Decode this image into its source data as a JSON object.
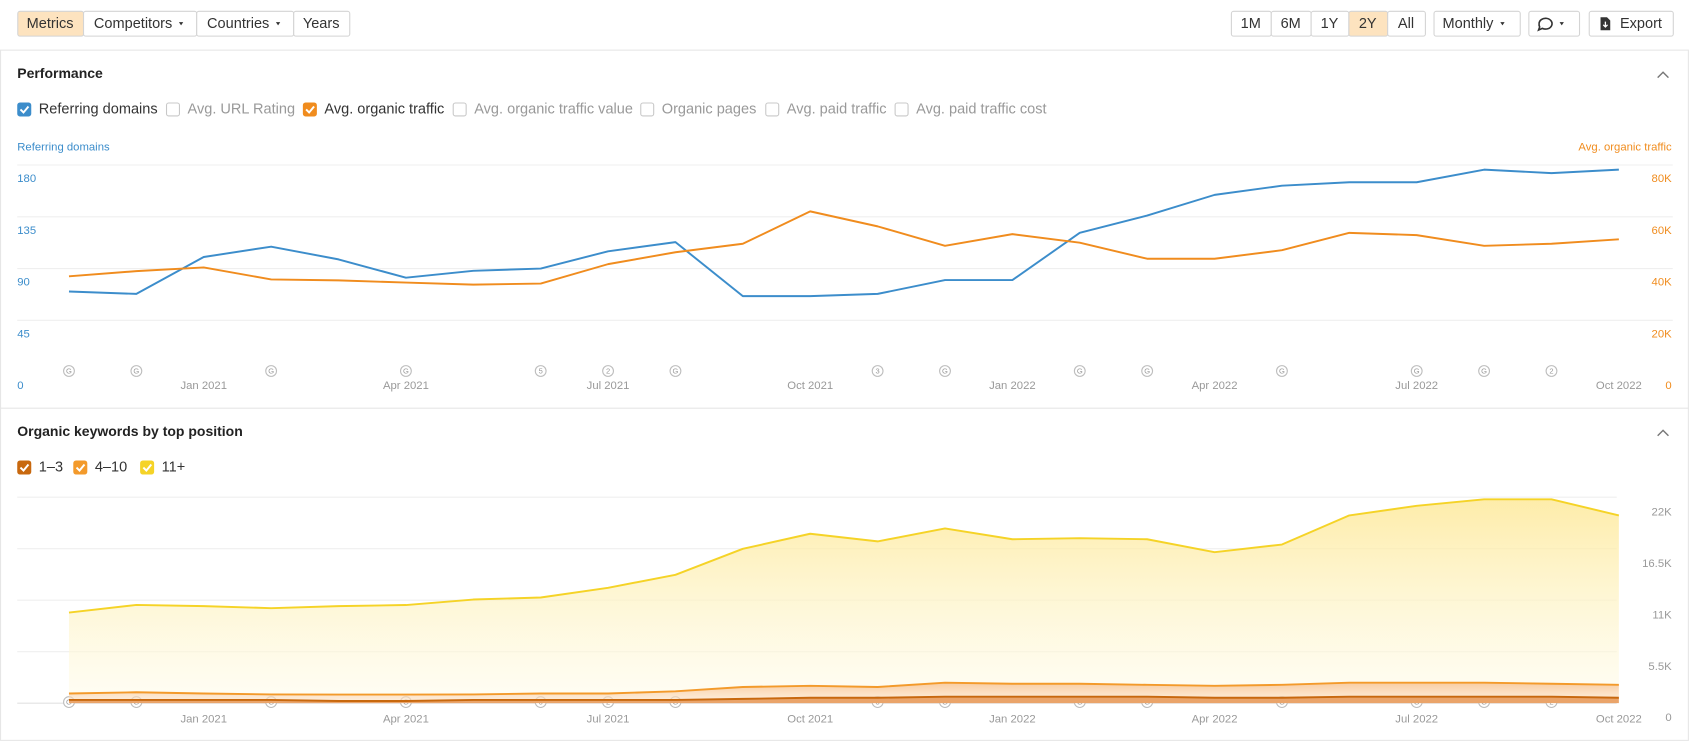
{
  "toolbar": {
    "view_tabs": [
      {
        "label": "Metrics",
        "dropdown": false
      },
      {
        "label": "Competitors",
        "dropdown": true
      },
      {
        "label": "Countries",
        "dropdown": true
      },
      {
        "label": "Years",
        "dropdown": false
      }
    ],
    "active_view": "Metrics",
    "ranges": [
      "1M",
      "6M",
      "1Y",
      "2Y",
      "All"
    ],
    "active_range": "2Y",
    "interval": "Monthly",
    "export": "Export"
  },
  "chart_data": [
    {
      "type": "line",
      "title": "Performance",
      "toggles": [
        {
          "label": "Referring domains",
          "checked": true,
          "color": "#3c8dcb"
        },
        {
          "label": "Avg. URL Rating",
          "checked": false,
          "color": "#bbbbbb"
        },
        {
          "label": "Avg. organic traffic",
          "checked": true,
          "color": "#f08c1e"
        },
        {
          "label": "Avg. organic traffic value",
          "checked": false,
          "color": "#bbbbbb"
        },
        {
          "label": "Organic pages",
          "checked": false,
          "color": "#bbbbbb"
        },
        {
          "label": "Avg. paid traffic",
          "checked": false,
          "color": "#bbbbbb"
        },
        {
          "label": "Avg. paid traffic cost",
          "checked": false,
          "color": "#bbbbbb"
        }
      ],
      "categories": [
        null,
        null,
        "Jan 2021",
        null,
        null,
        "Apr 2021",
        null,
        null,
        "Jul 2021",
        null,
        null,
        "Oct 2021",
        null,
        null,
        "Jan 2022",
        null,
        null,
        "Apr 2022",
        null,
        null,
        "Jul 2022",
        null,
        null,
        "Oct 2022"
      ],
      "markers": [
        "G",
        "G",
        null,
        "G",
        null,
        "G",
        null,
        "5",
        "2",
        "G",
        null,
        null,
        "3",
        "G",
        null,
        "G",
        "G",
        null,
        "G",
        null,
        "G",
        "G",
        "2",
        null
      ],
      "series": [
        {
          "name": "Referring domains",
          "color": "#3c8dcb",
          "axis": "y",
          "values": [
            70,
            68,
            100,
            109,
            98,
            82,
            88,
            90,
            105,
            113,
            66,
            66,
            68,
            80,
            80,
            121,
            136,
            154,
            162,
            165,
            165,
            176,
            173,
            176
          ]
        },
        {
          "name": "Avg. organic traffic",
          "color": "#f08c1e",
          "axis": "y2",
          "values": [
            37000,
            39000,
            40400,
            35800,
            35400,
            34600,
            33800,
            34200,
            41700,
            46300,
            49600,
            62100,
            56300,
            48800,
            53300,
            50000,
            43800,
            43800,
            47100,
            53800,
            52900,
            48800,
            49600,
            51300
          ]
        }
      ],
      "ylim": [
        0,
        180
      ],
      "yticks": [
        0,
        45,
        90,
        135,
        180
      ],
      "y2lim": [
        0,
        80000
      ],
      "y2ticks": [
        0,
        {
          "value": 20000,
          "label": "20K"
        },
        {
          "value": 40000,
          "label": "40K"
        },
        {
          "value": 60000,
          "label": "60K"
        },
        {
          "value": 80000,
          "label": "80K"
        }
      ],
      "grid": true
    },
    {
      "type": "stacked_area",
      "title": "Organic keywords by top position",
      "categories": [
        null,
        null,
        "Jan 2021",
        null,
        null,
        "Apr 2021",
        null,
        null,
        "Jul 2021",
        null,
        null,
        "Oct 2021",
        null,
        null,
        "Jan 2022",
        null,
        null,
        "Apr 2022",
        null,
        null,
        "Jul 2022",
        null,
        null,
        "Oct 2022"
      ],
      "markers": [
        "G",
        "G",
        null,
        "G",
        null,
        "G",
        null,
        "5",
        "2",
        "G",
        null,
        null,
        "3",
        "G",
        null,
        "G",
        "G",
        null,
        "G",
        null,
        "G",
        "G",
        "2",
        null
      ],
      "series": [
        {
          "name": "1–3",
          "color": "#c8680e",
          "values": [
            350,
            350,
            350,
            350,
            230,
            230,
            350,
            350,
            350,
            350,
            460,
            580,
            580,
            690,
            690,
            690,
            690,
            580,
            580,
            690,
            690,
            690,
            690,
            580
          ]
        },
        {
          "name": "4–10",
          "color": "#f39a2b",
          "values": [
            690,
            810,
            690,
            580,
            690,
            690,
            580,
            690,
            690,
            920,
            1270,
            1270,
            1150,
            1500,
            1380,
            1380,
            1270,
            1270,
            1380,
            1500,
            1500,
            1500,
            1380,
            1380
          ]
        },
        {
          "name": "11+",
          "color": "#f5d327",
          "values": [
            8640,
            9330,
            9330,
            9220,
            9450,
            9560,
            10140,
            10250,
            11290,
            12440,
            14750,
            16240,
            15550,
            16470,
            15440,
            15550,
            15550,
            14280,
            14980,
            17860,
            18890,
            19580,
            19700,
            18090
          ]
        }
      ],
      "ylim": [
        0,
        22000
      ],
      "yticks": [
        0,
        {
          "value": 5500,
          "label": "5.5K"
        },
        {
          "value": 11000,
          "label": "11K"
        },
        {
          "value": 16500,
          "label": "16.5K"
        },
        {
          "value": 22000,
          "label": "22K"
        }
      ],
      "grid": true
    }
  ]
}
